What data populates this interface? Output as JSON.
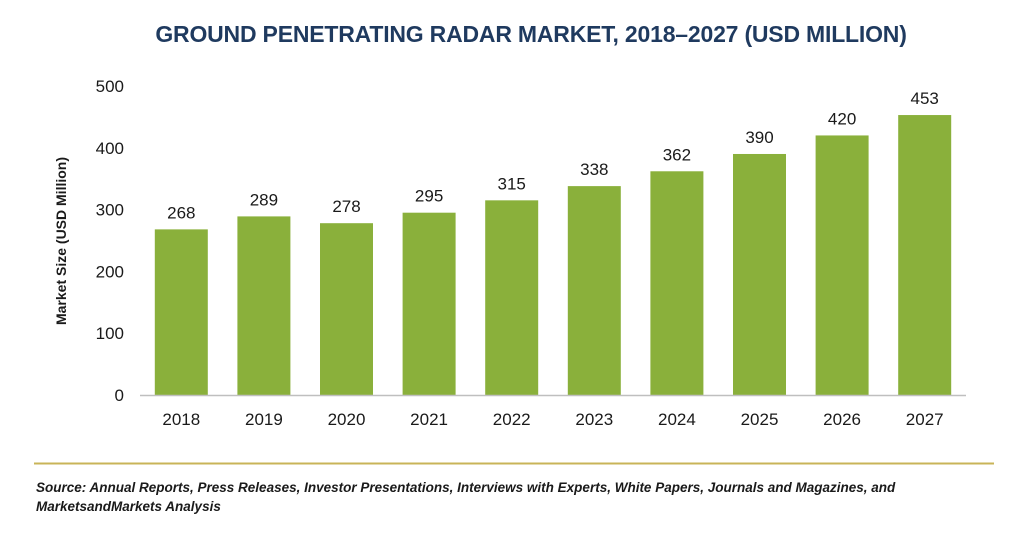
{
  "chart_data": {
    "type": "bar",
    "title": "GROUND PENETRATING RADAR MARKET, 2018–2027 (USD MILLION)",
    "ylabel": "Market Size (USD Million)",
    "xlabel": "",
    "categories": [
      "2018",
      "2019",
      "2020",
      "2021",
      "2022",
      "2023",
      "2024",
      "2025",
      "2026",
      "2027"
    ],
    "values": [
      268,
      289,
      278,
      295,
      315,
      338,
      362,
      390,
      420,
      453
    ],
    "ylim": [
      0,
      500
    ],
    "yticks": [
      0,
      100,
      200,
      300,
      400,
      500
    ],
    "grid": false,
    "legend": "none",
    "data_labels": true
  },
  "colors": {
    "title": "#1f3a5f",
    "bar": "#8ab03b",
    "axis": "#bfbfbf",
    "divider": "#c9b458"
  },
  "source": "Source: Annual Reports, Press Releases, Investor Presentations, Interviews with Experts, White Papers, Journals and Magazines, and MarketsandMarkets Analysis"
}
